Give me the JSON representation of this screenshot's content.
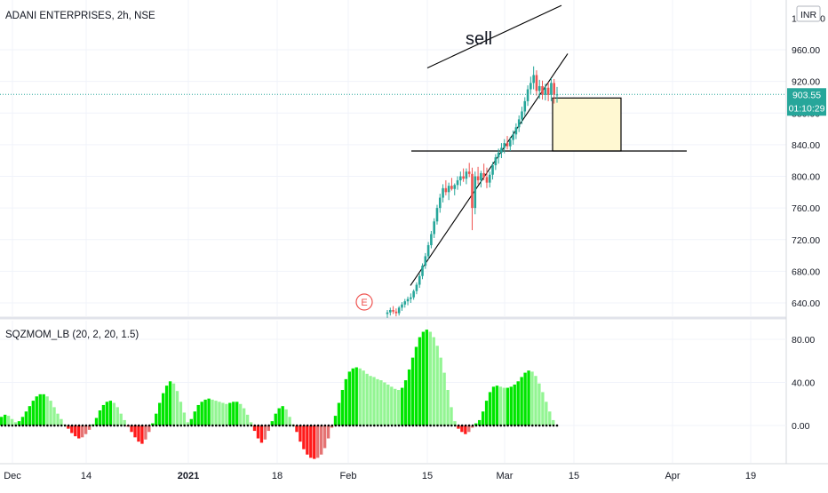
{
  "header": {
    "symbol_title": "ADANI ENTERPRISES, 2h, NSE",
    "indicator_label": "SQZMOM_LB (20, 2, 20, 1.5)",
    "annotation_text": "sell",
    "currency_badge": "INR",
    "earnings_marker": "E",
    "last_price_label": "903.55",
    "countdown_label": "01:10:29",
    "top_tick_partial": "1000.00"
  },
  "colors": {
    "up_candle": "#26a69a",
    "down_candle": "#ef5350",
    "price_line": "#26a69a",
    "momentum_up_strong": "#00e600",
    "momentum_up_weak": "#93f593",
    "momentum_down_strong": "#ff1a1a",
    "momentum_down_weak": "#e57373",
    "zero_dots": "#000000",
    "target_box_fill": "#fff8d2",
    "earnings_marker": "#ef5350"
  },
  "chart_data": [
    {
      "type": "candlestick",
      "title": "ADANI ENTERPRISES, 2h, NSE",
      "ylim": [
        620,
        1000
      ],
      "y_ticks": [
        "640.00",
        "680.00",
        "720.00",
        "760.00",
        "800.00",
        "840.00",
        "880.00",
        "920.00",
        "960.00"
      ],
      "x_ticks": [
        "Dec",
        "14",
        "2021",
        "18",
        "Feb",
        "15",
        "Mar",
        "15",
        "Apr",
        "19"
      ],
      "last_price": 903.55,
      "horizontal_level": 832,
      "target_zone": {
        "top": 899,
        "bottom": 832
      },
      "channel_upper": [
        [
          786,
          937
        ],
        [
          1012,
          1016
        ]
      ],
      "channel_lower": [
        [
          787,
          662
        ],
        [
          1018,
          955
        ]
      ],
      "candles_ohlc": [
        [
          626,
          631,
          621,
          628
        ],
        [
          628,
          634,
          624,
          631
        ],
        [
          631,
          636,
          626,
          629
        ],
        [
          629,
          633,
          623,
          627
        ],
        [
          627,
          636,
          624,
          634
        ],
        [
          634,
          641,
          630,
          638
        ],
        [
          638,
          645,
          634,
          642
        ],
        [
          642,
          648,
          637,
          645
        ],
        [
          645,
          652,
          640,
          647
        ],
        [
          647,
          657,
          644,
          655
        ],
        [
          655,
          666,
          651,
          663
        ],
        [
          663,
          677,
          659,
          674
        ],
        [
          674,
          690,
          670,
          687
        ],
        [
          687,
          703,
          683,
          699
        ],
        [
          699,
          717,
          695,
          713
        ],
        [
          713,
          731,
          709,
          727
        ],
        [
          727,
          747,
          722,
          743
        ],
        [
          743,
          764,
          739,
          760
        ],
        [
          760,
          778,
          754,
          773
        ],
        [
          773,
          790,
          767,
          785
        ],
        [
          785,
          795,
          776,
          780
        ],
        [
          780,
          792,
          770,
          788
        ],
        [
          788,
          798,
          782,
          784
        ],
        [
          784,
          791,
          776,
          789
        ],
        [
          789,
          800,
          783,
          795
        ],
        [
          795,
          806,
          788,
          800
        ],
        [
          800,
          810,
          793,
          797
        ],
        [
          797,
          810,
          790,
          806
        ],
        [
          806,
          817,
          799,
          803
        ],
        [
          803,
          811,
          732,
          760
        ],
        [
          760,
          806,
          752,
          800
        ],
        [
          800,
          812,
          790,
          795
        ],
        [
          795,
          807,
          786,
          804
        ],
        [
          804,
          816,
          795,
          799
        ],
        [
          799,
          811,
          785,
          792
        ],
        [
          792,
          806,
          786,
          802
        ],
        [
          802,
          818,
          796,
          814
        ],
        [
          814,
          828,
          808,
          824
        ],
        [
          824,
          835,
          816,
          830
        ],
        [
          830,
          842,
          823,
          836
        ],
        [
          836,
          847,
          829,
          842
        ],
        [
          842,
          851,
          834,
          838
        ],
        [
          838,
          850,
          832,
          846
        ],
        [
          846,
          858,
          840,
          853
        ],
        [
          853,
          867,
          847,
          862
        ],
        [
          862,
          877,
          856,
          872
        ],
        [
          872,
          888,
          866,
          882
        ],
        [
          882,
          900,
          876,
          895
        ],
        [
          895,
          915,
          889,
          910
        ],
        [
          910,
          926,
          904,
          918
        ],
        [
          918,
          939,
          910,
          928
        ],
        [
          928,
          934,
          902,
          908
        ],
        [
          908,
          922,
          898,
          914
        ],
        [
          914,
          921,
          897,
          903
        ],
        [
          903,
          917,
          896,
          912
        ],
        [
          912,
          919,
          895,
          903
        ],
        [
          903,
          924,
          895,
          918
        ],
        [
          918,
          923,
          892,
          903
        ],
        [
          903,
          913,
          893,
          903.55
        ]
      ]
    },
    {
      "type": "histogram",
      "title": "SQZMOM_LB (20, 2, 20, 1.5)",
      "ylim": [
        -50,
        100
      ],
      "y_ticks": [
        "0.00",
        "40.00",
        "80.00"
      ],
      "values": [
        8,
        10,
        9,
        6,
        3,
        4,
        8,
        13,
        18,
        23,
        27,
        29,
        29,
        27,
        23,
        17,
        11,
        6,
        1,
        -3,
        -7,
        -10,
        -12,
        -11,
        -8,
        -4,
        1,
        7,
        14,
        19,
        22,
        23,
        21,
        17,
        11,
        5,
        -1,
        -6,
        -11,
        -15,
        -17,
        -13,
        -6,
        2,
        11,
        21,
        30,
        37,
        41,
        39,
        32,
        22,
        12,
        3,
        6,
        13,
        19,
        22,
        24,
        25,
        24,
        23,
        22,
        21,
        20,
        21,
        22,
        22,
        20,
        16,
        10,
        3,
        -5,
        -12,
        -16,
        -13,
        -5,
        4,
        11,
        16,
        18,
        15,
        8,
        1,
        -6,
        -15,
        -22,
        -27,
        -30,
        -31,
        -30,
        -27,
        -21,
        -12,
        -2,
        9,
        21,
        33,
        43,
        50,
        53,
        54,
        53,
        51,
        48,
        46,
        45,
        43,
        42,
        40,
        38,
        36,
        34,
        33,
        35,
        42,
        52,
        63,
        73,
        82,
        87,
        89,
        87,
        82,
        74,
        63,
        49,
        33,
        17,
        4,
        -3,
        -6,
        -8,
        -6,
        -2,
        2,
        5,
        13,
        23,
        31,
        36,
        37,
        36,
        35,
        35,
        36,
        38,
        41,
        45,
        49,
        51,
        50,
        46,
        39,
        31,
        22,
        13,
        5,
        0
      ]
    }
  ]
}
